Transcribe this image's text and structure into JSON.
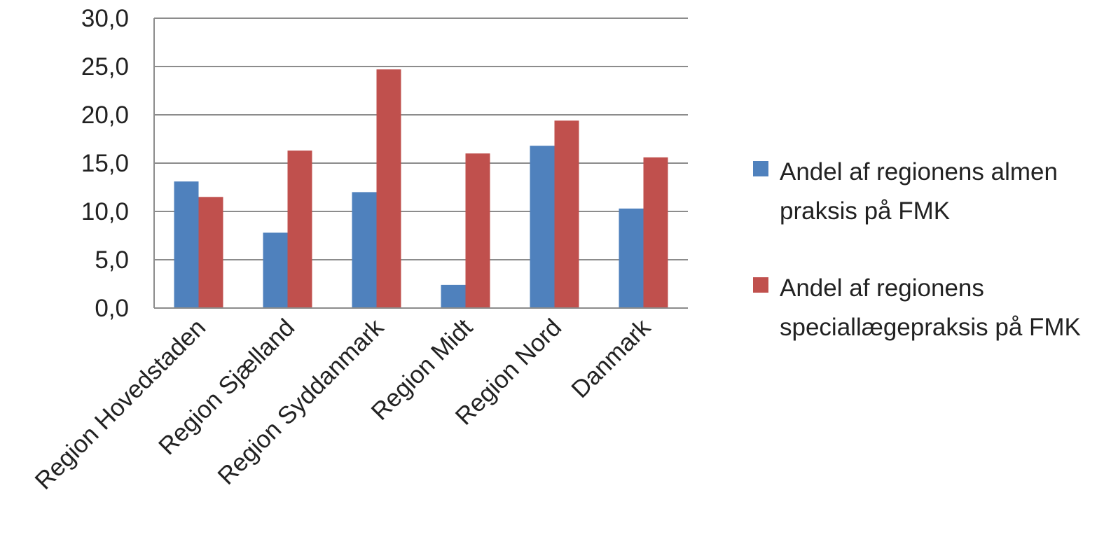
{
  "chart_data": {
    "type": "bar",
    "categories": [
      "Region Hovedstaden",
      "Region Sjælland",
      "Region Syddanmark",
      "Region Midt",
      "Region Nord",
      "Danmark"
    ],
    "series": [
      {
        "name": "Andel af regionens almen praksis på FMK",
        "color": "#4F81BD",
        "values": [
          13.1,
          7.8,
          12.0,
          2.4,
          16.8,
          10.3
        ]
      },
      {
        "name": "Andel af regionens speciallægepraksis på FMK",
        "color": "#C0504D",
        "values": [
          11.5,
          16.3,
          24.7,
          16.0,
          19.4,
          15.6
        ]
      }
    ],
    "ylim": [
      0,
      30
    ],
    "yticks": [
      "0,0",
      "5,0",
      "10,0",
      "15,0",
      "20,0",
      "25,0",
      "30,0"
    ],
    "grid": true,
    "legend_position": "right"
  }
}
